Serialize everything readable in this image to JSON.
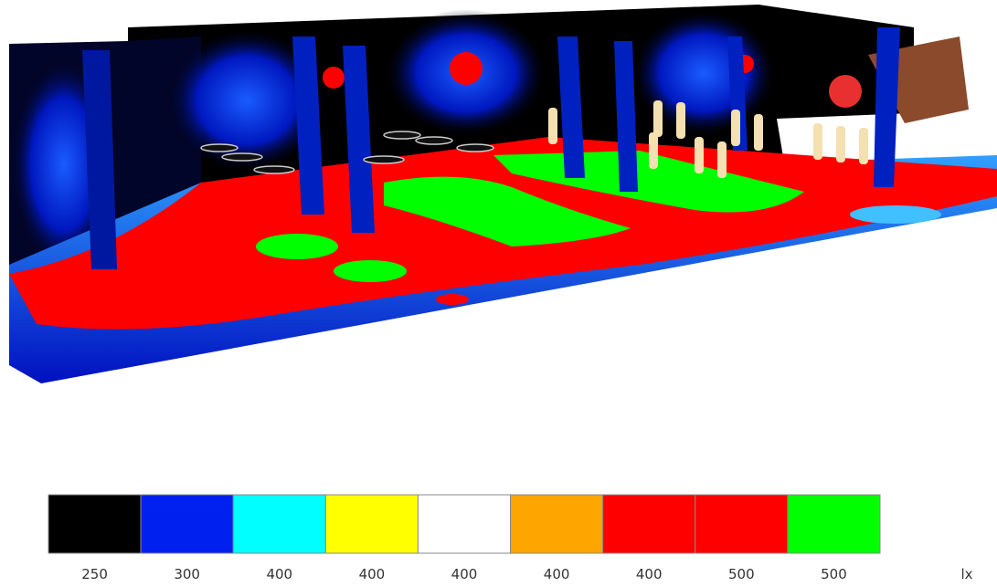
{
  "legend": {
    "entries": [
      {
        "color": "#000000",
        "label": "250"
      },
      {
        "color": "#0020f0",
        "label": "300"
      },
      {
        "color": "#00ffff",
        "label": "400"
      },
      {
        "color": "#ffff00",
        "label": "400"
      },
      {
        "color": "#ffffff",
        "label": "400"
      },
      {
        "color": "#ffa500",
        "label": "400"
      },
      {
        "color": "#ff0000",
        "label": "400"
      },
      {
        "color": "#ff0000",
        "label": "500"
      },
      {
        "color": "#00ff00",
        "label": "500"
      }
    ],
    "unit": "lx"
  }
}
